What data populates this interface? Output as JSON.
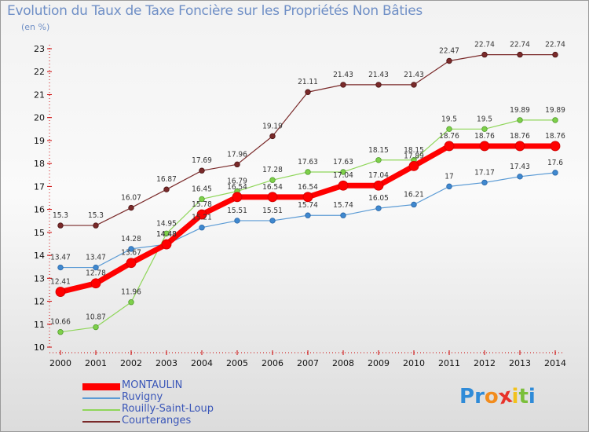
{
  "title": "Evolution du Taux de Taxe Foncière sur les Propriétés Non Bâties",
  "subtitle": "(en %)",
  "colors": {
    "MONTAULIN": "#ff0000",
    "Ruvigny": "#5b9bd5",
    "Rouilly-Saint-Loup": "#8fd65a",
    "Courteranges": "#7a2a2a"
  },
  "logo": {
    "text": "Proxiti",
    "letters": [
      "P",
      "r",
      "o",
      "x",
      "i",
      "t",
      "i"
    ],
    "colors": [
      "#2f8bd8",
      "#2f8bd8",
      "#f28c1d",
      "#e8332a",
      "#f2c21b",
      "#7bbf3a",
      "#2f8bd8"
    ]
  },
  "chart_data": {
    "type": "line",
    "title": "Evolution du Taux de Taxe Foncière sur les Propriétés Non Bâties",
    "ylabel": "(en %)",
    "xlabel": "",
    "x": [
      "2000",
      "2001",
      "2002",
      "2003",
      "2004",
      "2005",
      "2006",
      "2007",
      "2008",
      "2009",
      "2010",
      "2011",
      "2012",
      "2013",
      "2014"
    ],
    "ylim": [
      10,
      23
    ],
    "yticks": [
      "10",
      "11",
      "12",
      "13",
      "14",
      "15",
      "16",
      "17",
      "18",
      "19",
      "20",
      "21",
      "22",
      "23"
    ],
    "legend_position": "bottom-left",
    "grid": false,
    "series": [
      {
        "name": "MONTAULIN",
        "values": [
          12.41,
          12.78,
          13.67,
          14.48,
          15.78,
          16.54,
          16.54,
          16.54,
          17.04,
          17.04,
          17.89,
          18.76,
          18.76,
          18.76,
          18.76
        ],
        "labels": [
          "12.41",
          "12.78",
          "13.67",
          "14.48",
          "15.78",
          "16.54",
          "16.54",
          "16.54",
          "17.04",
          "17.04",
          "17.89",
          "18.76",
          "18.76",
          "18.76",
          "18.76"
        ]
      },
      {
        "name": "Ruvigny",
        "values": [
          13.47,
          13.47,
          14.28,
          14.48,
          15.21,
          15.51,
          15.51,
          15.74,
          15.74,
          16.05,
          16.21,
          17,
          17.17,
          17.43,
          17.6
        ],
        "labels": [
          "13.47",
          "13.47",
          "14.28",
          "14.48",
          "15.21",
          "15.51",
          "15.51",
          "15.74",
          "15.74",
          "16.05",
          "16.21",
          "17",
          "17.17",
          "17.43",
          "17.6"
        ]
      },
      {
        "name": "Rouilly-Saint-Loup",
        "values": [
          10.66,
          10.87,
          11.96,
          14.95,
          16.45,
          16.79,
          17.28,
          17.63,
          17.63,
          18.15,
          18.15,
          19.5,
          19.5,
          19.89,
          19.89
        ],
        "labels": [
          "10.66",
          "10.87",
          "11.96",
          "14.95",
          "16.45",
          "16.79",
          "17.28",
          "17.63",
          "17.63",
          "18.15",
          "18.15",
          "19.5",
          "19.5",
          "19.89",
          "19.89"
        ]
      },
      {
        "name": "Courteranges",
        "values": [
          15.3,
          15.3,
          16.07,
          16.87,
          17.69,
          17.96,
          19.19,
          21.11,
          21.43,
          21.43,
          21.43,
          22.47,
          22.74,
          22.74,
          22.74
        ],
        "labels": [
          "15.3",
          "15.3",
          "16.07",
          "16.87",
          "17.69",
          "17.96",
          "19.19",
          "21.11",
          "21.43",
          "21.43",
          "21.43",
          "22.47",
          "22.74",
          "22.74",
          "22.74"
        ]
      }
    ]
  }
}
